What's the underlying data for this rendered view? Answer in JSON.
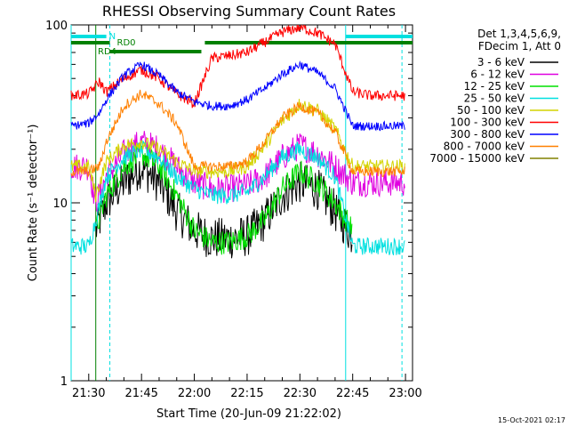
{
  "chart_data": {
    "type": "line",
    "title": "RHESSI Observing Summary Count Rates",
    "xlabel": "Start Time (20-Jun-09 21:22:02)",
    "ylabel": "Count Rate (s⁻¹ detector⁻¹)",
    "y_scale": "log",
    "ylim": [
      1,
      100
    ],
    "xlim": [
      "21:25:00",
      "23:02:00"
    ],
    "x_ticks": [
      "21:30",
      "21:45",
      "22:00",
      "22:15",
      "22:30",
      "22:45",
      "23:00"
    ],
    "y_ticks": [
      "1",
      "10",
      "100"
    ],
    "grid": false,
    "legend_position": "right",
    "legend_header": [
      "Det 1,3,4,5,6,9,",
      "FDecim 1, Att 0"
    ],
    "footer": "15-Oct-2021 02:17",
    "series": [
      {
        "name": "3 - 6 keV",
        "color": "#000000",
        "noise": 0.12,
        "x": [
          "21:25",
          "21:30",
          "21:32",
          "21:35",
          "21:40",
          "21:45",
          "21:50",
          "21:55",
          "22:00",
          "22:05",
          "22:10",
          "22:15",
          "22:20",
          "22:25",
          "22:30",
          "22:35",
          "22:40",
          "22:45"
        ],
        "values": [
          null,
          null,
          7,
          10,
          13,
          16,
          13,
          9,
          7,
          6.3,
          6.3,
          6.5,
          8,
          11,
          13,
          12,
          9,
          6.5
        ]
      },
      {
        "name": "6 - 12 keV",
        "color": "#e000e0",
        "noise": 0.08,
        "x": [
          "21:25",
          "21:30",
          "21:32",
          "21:35",
          "21:40",
          "21:45",
          "21:50",
          "21:55",
          "22:00",
          "22:05",
          "22:10",
          "22:15",
          "22:20",
          "22:25",
          "22:30",
          "22:35",
          "22:40",
          "22:45",
          "22:50",
          "23:00"
        ],
        "values": [
          16,
          16,
          10,
          14,
          19,
          22,
          20,
          16,
          13,
          12,
          12,
          12.5,
          14,
          18,
          21,
          19,
          16,
          13,
          13,
          13
        ]
      },
      {
        "name": "12 - 25 keV",
        "color": "#00e000",
        "noise": 0.07,
        "x": [
          "21:30",
          "21:32",
          "21:35",
          "21:40",
          "21:45",
          "21:50",
          "21:55",
          "22:00",
          "22:05",
          "22:10",
          "22:15",
          "22:20",
          "22:25",
          "22:30",
          "22:35",
          "22:40",
          "22:45"
        ],
        "values": [
          null,
          7,
          11,
          16,
          19,
          16,
          11,
          7,
          6,
          6,
          6.5,
          8,
          12,
          15,
          13,
          10,
          7
        ]
      },
      {
        "name": "25 - 50 keV",
        "color": "#00e0e0",
        "noise": 0.05,
        "x": [
          "21:25",
          "21:30",
          "21:32",
          "21:35",
          "21:40",
          "21:45",
          "21:50",
          "21:55",
          "22:00",
          "22:05",
          "22:10",
          "22:15",
          "22:20",
          "22:25",
          "22:30",
          "22:35",
          "22:40",
          "22:45",
          "22:50",
          "23:00"
        ],
        "values": [
          5.7,
          5.7,
          8,
          14,
          18,
          20,
          18,
          14,
          12,
          11,
          11,
          11.5,
          14,
          18,
          20,
          18,
          14,
          5.7,
          5.7,
          5.7
        ]
      },
      {
        "name": "50 - 100 keV",
        "color": "#d4d400",
        "noise": 0.04,
        "x": [
          "21:25",
          "21:30",
          "21:32",
          "21:35",
          "21:40",
          "21:45",
          "21:50",
          "21:55",
          "22:00",
          "22:05",
          "22:10",
          "22:15",
          "22:20",
          "22:25",
          "22:30",
          "22:35",
          "22:40",
          "22:45",
          "22:50",
          "23:00"
        ],
        "values": [
          16,
          16,
          11,
          17,
          21,
          22,
          20,
          17,
          15,
          15,
          15,
          16,
          21,
          29,
          36,
          33,
          26,
          16,
          16,
          16
        ]
      },
      {
        "name": "100 - 300 keV",
        "color": "#ff0000",
        "noise": 0.03,
        "x": [
          "21:25",
          "21:30",
          "21:33",
          "21:35",
          "21:40",
          "21:45",
          "21:50",
          "21:55",
          "22:00",
          "22:05",
          "22:10",
          "22:15",
          "22:20",
          "22:25",
          "22:30",
          "22:35",
          "22:40",
          "22:45",
          "22:50",
          "23:00"
        ],
        "values": [
          40,
          41,
          48,
          42,
          50,
          56,
          50,
          41,
          36,
          65,
          67,
          70,
          80,
          91,
          97,
          90,
          78,
          42,
          40,
          40
        ]
      },
      {
        "name": "300 - 800 keV",
        "color": "#0000ff",
        "noise": 0.025,
        "x": [
          "21:25",
          "21:30",
          "21:33",
          "21:35",
          "21:40",
          "21:45",
          "21:50",
          "21:55",
          "22:00",
          "22:05",
          "22:10",
          "22:15",
          "22:20",
          "22:25",
          "22:30",
          "22:35",
          "22:40",
          "22:45",
          "22:50",
          "23:00"
        ],
        "values": [
          27,
          28,
          32,
          38,
          52,
          60,
          52,
          42,
          37,
          35,
          35,
          38,
          44,
          53,
          60,
          54,
          44,
          27,
          27,
          27
        ]
      },
      {
        "name": "800 - 7000 keV",
        "color": "#ff8000",
        "noise": 0.03,
        "x": [
          "21:25",
          "21:30",
          "21:33",
          "21:35",
          "21:40",
          "21:45",
          "21:50",
          "21:55",
          "22:00",
          "22:05",
          "22:10",
          "22:15",
          "22:20",
          "22:25",
          "22:30",
          "22:35",
          "22:40",
          "22:45",
          "22:50",
          "23:00"
        ],
        "values": [
          15,
          15,
          16,
          22,
          35,
          41,
          36,
          28,
          16,
          16,
          16,
          17,
          22,
          30,
          35,
          32,
          25,
          15,
          15,
          15
        ]
      },
      {
        "name": "7000 - 15000 keV",
        "color": "#808000",
        "noise": 0.0,
        "x": [],
        "values": []
      }
    ],
    "state_bars": [
      {
        "label": "N",
        "color": "#00e0e0",
        "segments": [
          [
            "21:25",
            "21:35"
          ],
          [
            "22:43",
            "23:02"
          ]
        ]
      },
      {
        "label": "RD0",
        "color": "#008000",
        "segments": [
          [
            "21:25",
            "21:36"
          ],
          [
            "22:03",
            "23:02"
          ]
        ]
      },
      {
        "label": "RD4",
        "color": "#008000",
        "segments": [
          [
            "21:36",
            "22:02"
          ]
        ]
      }
    ],
    "vertical_lines": [
      {
        "color": "#00e0e0",
        "style": "solid",
        "x": "21:25"
      },
      {
        "color": "#00e0e0",
        "style": "dashed",
        "x": "21:36"
      },
      {
        "color": "#00e0e0",
        "style": "solid",
        "x": "22:43"
      },
      {
        "color": "#00e0e0",
        "style": "dashed",
        "x": "22:59"
      },
      {
        "color": "#008000",
        "style": "solid",
        "x": "21:32"
      }
    ]
  }
}
